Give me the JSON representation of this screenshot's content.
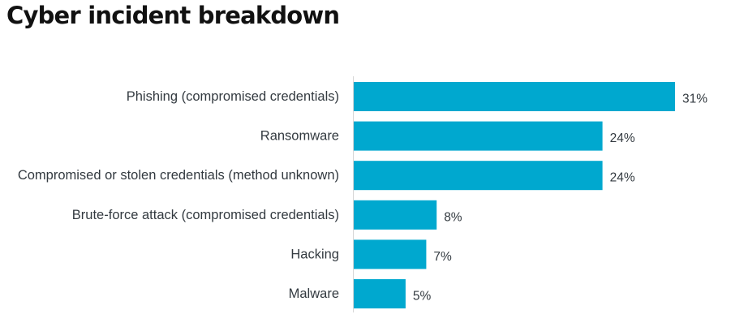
{
  "chart_data": {
    "type": "bar",
    "orientation": "horizontal",
    "title": "Cyber incident breakdown",
    "categories": [
      "Phishing (compromised credentials)",
      "Ransomware",
      "Compromised or stolen credentials (method unknown)",
      "Brute-force attack (compromised credentials)",
      "Hacking",
      "Malware"
    ],
    "values": [
      31,
      24,
      24,
      8,
      7,
      5
    ],
    "value_labels": [
      "31%",
      "24%",
      "24%",
      "8%",
      "7%",
      "5%"
    ],
    "unit": "%",
    "xlim": [
      0,
      31
    ],
    "grid": false,
    "legend": "none",
    "bar_color": "#00a8cf",
    "axis_color": "#d6d6d6"
  }
}
